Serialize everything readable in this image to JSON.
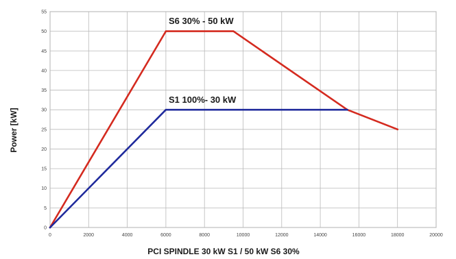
{
  "chart_data": {
    "type": "line",
    "title": "",
    "xlabel": "PCI SPINDLE 30 kW S1 / 50 kW S6 30%",
    "ylabel": "Power [kW]",
    "xlim": [
      0,
      20000
    ],
    "ylim": [
      0,
      55
    ],
    "xticks": [
      "0",
      "2000",
      "4000",
      "6000",
      "8000",
      "10000",
      "12000",
      "14000",
      "16000",
      "18000",
      "20000"
    ],
    "yticks": [
      "0",
      "5",
      "10",
      "15",
      "20",
      "25",
      "30",
      "35",
      "40",
      "45",
      "50",
      "55"
    ],
    "grid": true,
    "series": [
      {
        "name": "S6 30% - 50 kW",
        "color": "#d42a1f",
        "x": [
          0,
          6000,
          9500,
          15400,
          18000
        ],
        "y": [
          0,
          50,
          50,
          30,
          25
        ]
      },
      {
        "name": "S1 100%- 30 kW",
        "color": "#1f2a9c",
        "x": [
          0,
          6000,
          15400
        ],
        "y": [
          0,
          30,
          30
        ]
      }
    ]
  }
}
